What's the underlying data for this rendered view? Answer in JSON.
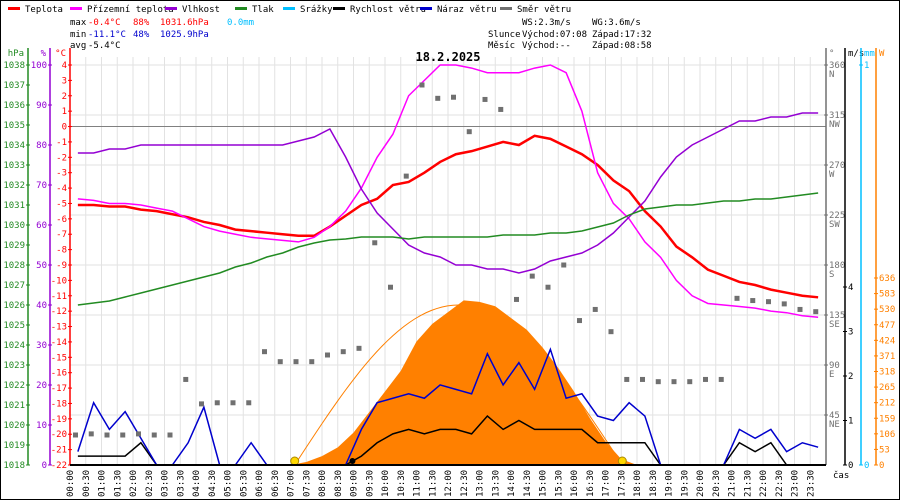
{
  "legend": [
    {
      "label": "Teplota",
      "color": "#ff0000"
    },
    {
      "label": "Přízemní teplota",
      "color": "#ff00ff"
    },
    {
      "label": "Vlhkost",
      "color": "#9400d3"
    },
    {
      "label": "Tlak",
      "color": "#228b22"
    },
    {
      "label": "Srážky",
      "color": "#00bfff"
    },
    {
      "label": "Rychlost větru",
      "color": "#000000"
    },
    {
      "label": "Náraz větru",
      "color": "#0000cd"
    },
    {
      "label": "Směr větru",
      "color": "#707070"
    }
  ],
  "stats": {
    "max_label": "max",
    "max_temp": "-0.4°C",
    "max_hum": "88%",
    "max_press": "1031.6hPa",
    "max_rain": "0.0mm",
    "min_label": "min",
    "min_temp": "-11.1°C",
    "min_hum": "48%",
    "min_press": "1025.9hPa",
    "avg_label": "avg",
    "avg_temp": "-5.4°C"
  },
  "info": {
    "ws": "WS:2.3m/s",
    "wg": "WG:3.6m/s",
    "sun_label": "Slunce",
    "sunrise": "Východ:07:08",
    "sunset": "Západ:17:32",
    "moon_label": "Měsíc",
    "moonrise": "Východ:--",
    "moonset": "Západ:08:58"
  },
  "chart_data": {
    "type": "line",
    "title": "18.2.2025",
    "xlabel": "čas",
    "x": [
      "00:00",
      "00:30",
      "01:00",
      "01:30",
      "02:00",
      "02:30",
      "03:00",
      "03:30",
      "04:00",
      "04:30",
      "05:00",
      "05:30",
      "06:00",
      "06:30",
      "07:00",
      "07:30",
      "08:00",
      "08:30",
      "09:00",
      "09:30",
      "10:00",
      "10:30",
      "11:00",
      "11:30",
      "12:00",
      "12:30",
      "13:00",
      "13:30",
      "14:00",
      "14:30",
      "15:00",
      "15:30",
      "16:00",
      "16:30",
      "17:00",
      "17:30",
      "18:00",
      "18:30",
      "19:00",
      "19:30",
      "20:00",
      "20:30",
      "21:00",
      "21:30",
      "22:00",
      "22:30",
      "23:00",
      "23:30"
    ],
    "axes": {
      "pressure": {
        "unit": "hPa",
        "range": [
          1018,
          1038
        ],
        "ticks": [
          1018,
          1019,
          1020,
          1021,
          1022,
          1023,
          1024,
          1025,
          1026,
          1027,
          1028,
          1029,
          1030,
          1031,
          1032,
          1033,
          1034,
          1035,
          1036,
          1037,
          1038
        ],
        "color": "#228b22"
      },
      "humidity": {
        "unit": "%",
        "range": [
          0,
          100
        ],
        "ticks": [
          0,
          10,
          20,
          30,
          40,
          50,
          60,
          70,
          80,
          90,
          100
        ],
        "color": "#9400d3"
      },
      "temperature": {
        "unit": "°C",
        "range": [
          -22,
          4
        ],
        "ticks": [
          -22,
          -21,
          -20,
          -19,
          -18,
          -17,
          -16,
          -15,
          -14,
          -13,
          -12,
          -11,
          -10,
          -9,
          -8,
          -7,
          -6,
          -5,
          -4,
          -3,
          -2,
          -1,
          0,
          1,
          2,
          3,
          4
        ],
        "color": "#ff0000"
      },
      "direction": {
        "unit": "°",
        "range": [
          0,
          360
        ],
        "ticks": [
          {
            "v": 45,
            "l": "45",
            "d": "NE"
          },
          {
            "v": 90,
            "l": "90",
            "d": "E"
          },
          {
            "v": 135,
            "l": "135",
            "d": "SE"
          },
          {
            "v": 180,
            "l": "180",
            "d": "S"
          },
          {
            "v": 225,
            "l": "225",
            "d": "SW"
          },
          {
            "v": 270,
            "l": "270",
            "d": "W"
          },
          {
            "v": 315,
            "l": "315",
            "d": "NW"
          },
          {
            "v": 360,
            "l": "360",
            "d": "N"
          }
        ],
        "color": "#707070"
      },
      "wind": {
        "unit": "m/s",
        "range": [
          0,
          4.5
        ],
        "ticks": [
          0,
          1,
          2,
          3,
          4
        ],
        "color": "#000000"
      },
      "rain": {
        "unit": "mm",
        "range": [
          0,
          1
        ],
        "ticks": [
          0,
          1
        ],
        "color": "#00bfff"
      },
      "solar": {
        "unit": "W",
        "range": [
          0,
          700
        ],
        "ticks": [
          0,
          53,
          106,
          159,
          212,
          265,
          318,
          371,
          424,
          477,
          530,
          583,
          636
        ],
        "color": "#ff8000"
      }
    },
    "grid": true,
    "legend_placement": "top",
    "sunrise": "07:08",
    "sunset": "17:32",
    "series": [
      {
        "name": "Teplota",
        "axis": "temperature",
        "color": "#ff0000",
        "values": [
          -5.1,
          -5.1,
          -5.2,
          -5.2,
          -5.4,
          -5.5,
          -5.7,
          -5.9,
          -6.2,
          -6.4,
          -6.7,
          -6.8,
          -6.9,
          -7.0,
          -7.1,
          -7.1,
          -6.5,
          -5.8,
          -5.1,
          -4.7,
          -3.8,
          -3.6,
          -3.0,
          -2.3,
          -1.8,
          -1.6,
          -1.3,
          -1.0,
          -1.2,
          -0.6,
          -0.8,
          -1.3,
          -1.8,
          -2.5,
          -3.5,
          -4.2,
          -5.5,
          -6.5,
          -7.8,
          -8.5,
          -9.3,
          -9.7,
          -10.1,
          -10.3,
          -10.6,
          -10.8,
          -11.0,
          -11.1
        ]
      },
      {
        "name": "Přízemní teplota",
        "axis": "temperature",
        "color": "#ff00ff",
        "values": [
          -4.7,
          -4.8,
          -5.0,
          -5.0,
          -5.1,
          -5.3,
          -5.5,
          -6.0,
          -6.5,
          -6.8,
          -7.0,
          -7.2,
          -7.3,
          -7.4,
          -7.5,
          -7.2,
          -6.5,
          -5.5,
          -4.0,
          -2.0,
          -0.5,
          2.0,
          3.0,
          4.0,
          4.0,
          3.8,
          3.5,
          3.5,
          3.5,
          3.8,
          4.0,
          3.5,
          1.0,
          -3.0,
          -5.0,
          -6.0,
          -7.5,
          -8.5,
          -10.0,
          -11.0,
          -11.5,
          -11.6,
          -11.7,
          -11.8,
          -12.0,
          -12.1,
          -12.3,
          -12.4
        ]
      },
      {
        "name": "Vlhkost",
        "axis": "humidity",
        "color": "#9400d3",
        "values": [
          78,
          78,
          79,
          79,
          80,
          80,
          80,
          80,
          80,
          80,
          80,
          80,
          80,
          80,
          81,
          82,
          84,
          77,
          69,
          63,
          59,
          55,
          53,
          52,
          50,
          50,
          49,
          49,
          48,
          49,
          51,
          52,
          53,
          55,
          58,
          62,
          66,
          72,
          77,
          80,
          82,
          84,
          86,
          86,
          87,
          87,
          88,
          88
        ]
      },
      {
        "name": "Tlak",
        "axis": "pressure",
        "color": "#228b22",
        "values": [
          1026.0,
          1026.1,
          1026.2,
          1026.4,
          1026.6,
          1026.8,
          1027.0,
          1027.2,
          1027.4,
          1027.6,
          1027.9,
          1028.1,
          1028.4,
          1028.6,
          1028.9,
          1029.1,
          1029.25,
          1029.3,
          1029.4,
          1029.4,
          1029.4,
          1029.3,
          1029.4,
          1029.4,
          1029.4,
          1029.4,
          1029.4,
          1029.5,
          1029.5,
          1029.5,
          1029.6,
          1029.6,
          1029.7,
          1029.9,
          1030.1,
          1030.5,
          1030.8,
          1030.9,
          1031.0,
          1031.0,
          1031.1,
          1031.2,
          1031.2,
          1031.3,
          1031.3,
          1031.4,
          1031.5,
          1031.6
        ]
      },
      {
        "name": "Rychlost větru",
        "axis": "wind",
        "color": "#000000",
        "values": [
          0.2,
          0.2,
          0.2,
          0.2,
          0.5,
          0,
          0,
          0,
          0,
          0,
          0,
          0,
          0,
          0,
          0,
          0,
          0,
          0,
          0.2,
          0.5,
          0.7,
          0.8,
          0.7,
          0.8,
          0.8,
          0.7,
          1.1,
          0.8,
          1.0,
          0.8,
          0.8,
          0.8,
          0.8,
          0.5,
          0.5,
          0.5,
          0.5,
          0,
          0,
          0,
          0,
          0,
          0.5,
          0.3,
          0.5,
          0,
          0,
          0
        ]
      },
      {
        "name": "Náraz větru",
        "axis": "wind",
        "color": "#0000cd",
        "values": [
          0.3,
          1.4,
          0.8,
          1.2,
          0.6,
          0,
          0,
          0.5,
          1.3,
          0,
          0,
          0.5,
          0,
          0,
          0,
          0,
          0,
          0,
          0.8,
          1.4,
          1.5,
          1.6,
          1.5,
          1.8,
          1.7,
          1.6,
          2.5,
          1.8,
          2.3,
          1.7,
          2.6,
          1.5,
          1.6,
          1.1,
          1.0,
          1.4,
          1.1,
          0,
          0,
          0,
          0,
          0,
          0.8,
          0.6,
          0.8,
          0.3,
          0.5,
          0.4
        ]
      },
      {
        "name": "Směr větru",
        "axis": "direction",
        "color": "#707070",
        "type": "scatter",
        "values": [
          27,
          28,
          27,
          27,
          28,
          27,
          27,
          77,
          55,
          56,
          56,
          56,
          102,
          93,
          93,
          93,
          99,
          102,
          105,
          200,
          160,
          260,
          342,
          330,
          331,
          300,
          329,
          320,
          149,
          170,
          160,
          180,
          130,
          140,
          120,
          77,
          77,
          75,
          75,
          75,
          77,
          77,
          150,
          148,
          147,
          145,
          140,
          138
        ]
      },
      {
        "name": "Srážky",
        "axis": "rain",
        "color": "#00bfff",
        "values": [
          0,
          0,
          0,
          0,
          0,
          0,
          0,
          0,
          0,
          0,
          0,
          0,
          0,
          0,
          0,
          0,
          0,
          0,
          0,
          0,
          0,
          0,
          0,
          0,
          0,
          0,
          0,
          0,
          0,
          0,
          0,
          0,
          0,
          0,
          0,
          0,
          0,
          0,
          0,
          0,
          0,
          0,
          0,
          0,
          0,
          0,
          0,
          0
        ]
      },
      {
        "name": "Solar",
        "axis": "solar",
        "color": "#ff8000",
        "type": "area",
        "values": [
          0,
          0,
          0,
          0,
          0,
          0,
          0,
          0,
          0,
          0,
          0,
          0,
          0,
          0,
          0,
          10,
          30,
          60,
          110,
          180,
          250,
          320,
          420,
          480,
          520,
          560,
          555,
          540,
          500,
          460,
          400,
          330,
          250,
          160,
          80,
          20,
          0,
          0,
          0,
          0,
          0,
          0,
          0,
          0,
          0,
          0,
          0,
          0
        ]
      },
      {
        "name": "Theoretical solar",
        "axis": "solar",
        "color": "#ff8000",
        "type": "curve",
        "peak": 544
      }
    ]
  }
}
